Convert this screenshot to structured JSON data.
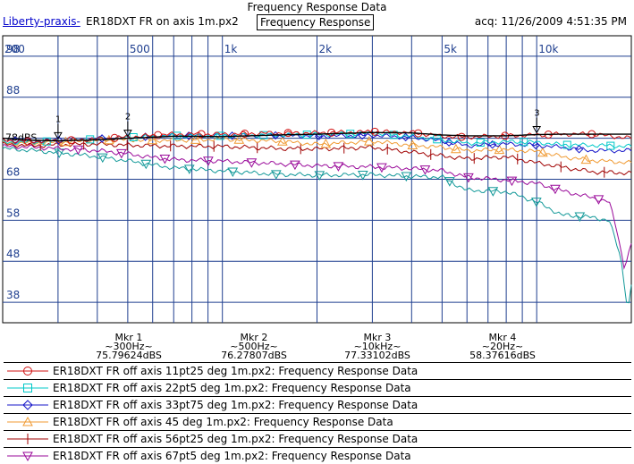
{
  "window": {
    "title": "Frequency Response Data"
  },
  "header": {
    "source": "Liberty-praxis-",
    "file": "ER18DXT FR on axis 1m.px2",
    "view": "Frequency Response",
    "acquired": "acq: 11/26/2009 4:51:35 PM"
  },
  "markers": [
    {
      "label": "Mkr 1",
      "freq": "~300Hz~",
      "value": "75.79624dBS"
    },
    {
      "label": "Mkr 2",
      "freq": "~500Hz~",
      "value": "76.27807dBS"
    },
    {
      "label": "Mkr 3",
      "freq": "~10kHz~",
      "value": "77.33102dBS"
    },
    {
      "label": "Mkr 4",
      "freq": "~20Hz~",
      "value": "58.37616dBS"
    }
  ],
  "legend": [
    "ER18DXT FR off axis 11pt25 deg 1m.px2:  Frequency Response Data",
    "ER18DXT FR off axis 22pt5 deg 1m.px2:  Frequency Response Data",
    "ER18DXT FR off axis 33pt75 deg 1m.px2:  Frequency Response Data",
    "ER18DXT FR off axis 45 deg 1m.px2:  Frequency Response Data",
    "ER18DXT FR off axis 56pt25 deg 1m.px2:  Frequency Response Data",
    "ER18DXT FR off axis 67pt5 deg 1m.px2:  Frequency Response Data"
  ],
  "colors": {
    "grid": "#1f3f8f",
    "frame": "#000000",
    "label": "#1f3f8f",
    "on_axis": "#000000"
  },
  "chart_data": {
    "type": "line",
    "title": "Frequency Response Data",
    "x_scale": "log",
    "xlim": [
      200,
      20000
    ],
    "ylim": [
      33,
      103
    ],
    "x_tick_labels": [
      {
        "x": 200,
        "label": "200"
      },
      {
        "x": 500,
        "label": "500"
      },
      {
        "x": 1000,
        "label": "1k"
      },
      {
        "x": 2000,
        "label": "2k"
      },
      {
        "x": 5000,
        "label": "5k"
      },
      {
        "x": 10000,
        "label": "10k"
      }
    ],
    "x_minor_ticks": [
      300,
      400,
      600,
      700,
      800,
      900,
      3000,
      4000,
      6000,
      7000,
      8000,
      9000
    ],
    "y_ticks": [
      98,
      88,
      78,
      68,
      58,
      48,
      38
    ],
    "y_inline_label": {
      "y": 78,
      "label": "78dBS"
    },
    "grid": true,
    "marker_points": [
      {
        "label": "1",
        "x": 300
      },
      {
        "label": "2",
        "x": 500
      },
      {
        "label": "3",
        "x": 10000
      }
    ],
    "series": [
      {
        "color": "#000000",
        "symbol": "none",
        "x": [
          200,
          250,
          300,
          400,
          500,
          700,
          1000,
          1500,
          2000,
          3000,
          4000,
          5000,
          6000,
          8000,
          10000,
          12000,
          15000,
          20000
        ],
        "y": [
          78,
          77.5,
          77.4,
          77.6,
          78,
          78.5,
          78.4,
          78.8,
          79,
          79.4,
          79.3,
          78.8,
          78.6,
          78.6,
          78.9,
          79,
          79,
          79
        ]
      },
      {
        "color": "#d01010",
        "symbol": "circle",
        "x": [
          200,
          250,
          300,
          400,
          500,
          700,
          1000,
          1500,
          2000,
          3000,
          4000,
          5000,
          6000,
          8000,
          10000,
          12000,
          15000,
          20000
        ],
        "y": [
          77.5,
          77.2,
          77.4,
          77.8,
          78.3,
          79,
          79,
          79.3,
          79.3,
          79.6,
          79.4,
          78.5,
          78.3,
          78.6,
          78.8,
          79,
          79,
          78
        ]
      },
      {
        "color": "#00c8c8",
        "symbol": "square",
        "x": [
          200,
          250,
          300,
          400,
          500,
          700,
          1000,
          1500,
          2000,
          3000,
          4000,
          5000,
          6000,
          8000,
          10000,
          12000,
          15000,
          20000
        ],
        "y": [
          77,
          77,
          77.4,
          77.8,
          78.2,
          78.6,
          78.6,
          78.8,
          78.9,
          79.2,
          78.5,
          77.6,
          76.8,
          77.2,
          77,
          76.4,
          76.3,
          76
        ]
      },
      {
        "color": "#1414c8",
        "symbol": "diamond",
        "x": [
          200,
          250,
          300,
          400,
          500,
          700,
          1000,
          1500,
          2000,
          3000,
          4000,
          5000,
          6000,
          8000,
          10000,
          12000,
          15000,
          20000
        ],
        "y": [
          77.5,
          77.3,
          77.5,
          77.9,
          78.2,
          78.6,
          78.6,
          78.7,
          78.5,
          78.7,
          78.2,
          77.3,
          76.2,
          76.6,
          76.3,
          75.8,
          75,
          75
        ]
      },
      {
        "color": "#f09a32",
        "symbol": "triangle",
        "x": [
          200,
          250,
          300,
          400,
          500,
          700,
          1000,
          1500,
          2000,
          3000,
          4000,
          5000,
          6000,
          8000,
          10000,
          12000,
          15000,
          20000
        ],
        "y": [
          76.8,
          76.8,
          77,
          77.5,
          77.6,
          77.5,
          77.8,
          77.3,
          76.5,
          77.3,
          76.3,
          75.8,
          75,
          75.2,
          74.8,
          73.5,
          72.6,
          72
        ]
      },
      {
        "color": "#a00000",
        "symbol": "plus",
        "x": [
          200,
          250,
          300,
          400,
          500,
          700,
          1000,
          1500,
          2000,
          3000,
          4000,
          5000,
          6000,
          8000,
          10000,
          12000,
          15000,
          20000
        ],
        "y": [
          76.5,
          76.2,
          76.4,
          76.6,
          76.3,
          76.1,
          76,
          75.5,
          75.4,
          75.8,
          74.6,
          73.7,
          73,
          73.5,
          72,
          71,
          69.8,
          69.5
        ]
      },
      {
        "color": "#9a0a9a",
        "symbol": "triangle-down",
        "x": [
          200,
          250,
          300,
          400,
          500,
          600,
          700,
          1000,
          1500,
          2000,
          3000,
          4000,
          5000,
          6000,
          8000,
          10000,
          12000,
          15000,
          17000,
          18000,
          19000,
          20000
        ],
        "y": [
          76,
          75.8,
          75.5,
          75,
          74.2,
          73.3,
          72.8,
          72.4,
          71.8,
          71.3,
          71,
          70.6,
          70.1,
          68.5,
          67.8,
          67,
          65.2,
          63.5,
          62.5,
          55.5,
          46.5,
          52
        ]
      },
      {
        "color": "#139999",
        "symbol": "triangle-down-cyan",
        "x": [
          200,
          250,
          300,
          400,
          500,
          600,
          700,
          1000,
          1500,
          2000,
          3000,
          4000,
          5000,
          6000,
          8000,
          10000,
          12000,
          15000,
          17000,
          18500,
          19500,
          20000
        ],
        "y": [
          75.5,
          75,
          74.5,
          73.5,
          72.5,
          71.5,
          70.8,
          70,
          69.2,
          69,
          69.1,
          68.7,
          68.5,
          65.3,
          65,
          62.5,
          59.3,
          58.7,
          58,
          49,
          36,
          42
        ]
      }
    ]
  }
}
